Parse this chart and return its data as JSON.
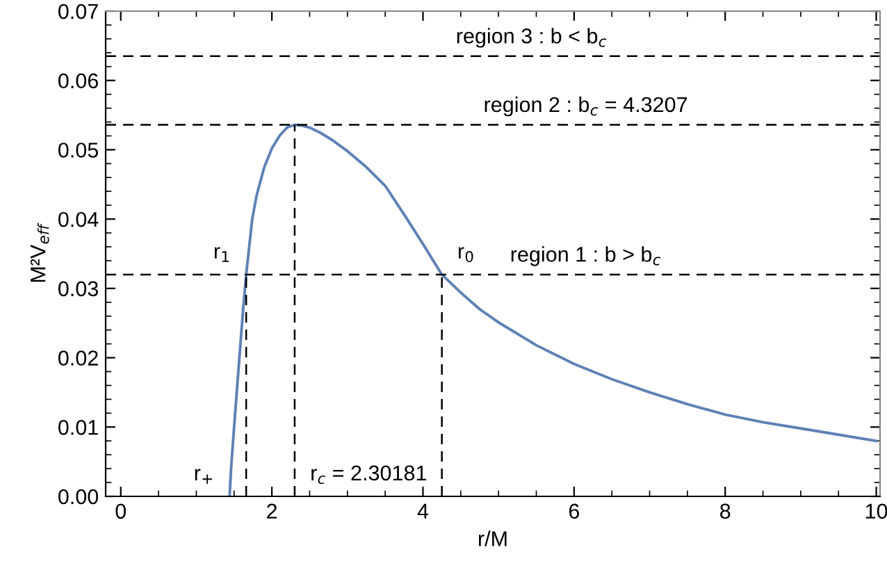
{
  "chart_data": {
    "type": "line",
    "xlabel": "r/M",
    "ylabel": "M²V$_{eff}$",
    "series": [
      {
        "color": "#5e81b5",
        "x": [
          1.44,
          1.46,
          1.5,
          1.57,
          1.62,
          1.66,
          1.74,
          1.8,
          1.9,
          2.0,
          2.1,
          2.2,
          2.30181,
          2.4,
          2.5,
          2.65,
          2.8,
          3.0,
          3.25,
          3.5,
          3.79,
          4.0,
          4.25,
          4.5,
          4.75,
          5,
          5.5,
          6,
          6.5,
          7,
          7.5,
          8,
          8.5,
          9,
          9.5,
          10
        ],
        "values": [
          0.0,
          0.004,
          0.01,
          0.02,
          0.027,
          0.032,
          0.04,
          0.0435,
          0.0475,
          0.0502,
          0.052,
          0.0532,
          0.0536,
          0.0535,
          0.0532,
          0.0524,
          0.0514,
          0.0498,
          0.0475,
          0.0448,
          0.04,
          0.0364,
          0.032,
          0.0294,
          0.027,
          0.0251,
          0.0218,
          0.0191,
          0.0169,
          0.015,
          0.0133,
          0.0118,
          0.0107,
          0.0098,
          0.0089,
          0.008
        ]
      }
    ],
    "xlim": [
      -0.2,
      10.05
    ],
    "ylim": [
      0,
      0.07
    ],
    "xticks": [
      0,
      2,
      4,
      6,
      8,
      10
    ],
    "yticks": [
      {
        "value": 0,
        "label": "0.00"
      },
      {
        "value": 0.01,
        "label": "0.01"
      },
      {
        "value": 0.02,
        "label": "0.02"
      },
      {
        "value": 0.03,
        "label": "0.03"
      },
      {
        "value": 0.04,
        "label": "0.04"
      },
      {
        "value": 0.05,
        "label": "0.05"
      },
      {
        "value": 0.06,
        "label": "0.06"
      },
      {
        "value": 0.07,
        "label": "0.07"
      }
    ],
    "ref_lines": [
      {
        "axis": "y",
        "value": 0.0635,
        "line_style": "dashed",
        "color": "#000000"
      },
      {
        "axis": "y",
        "value": 0.0536,
        "line_style": "dashed",
        "color": "#000000"
      },
      {
        "axis": "y",
        "value": 0.032,
        "line_style": "dashed",
        "color": "#000000"
      },
      {
        "axis": "x",
        "value": 1.66,
        "line_style": "dashed",
        "color": "#000000"
      },
      {
        "axis": "x",
        "value": 2.30181,
        "line_style": "dashed",
        "color": "#000000"
      },
      {
        "axis": "x",
        "value": 4.25,
        "line_style": "dashed",
        "color": "#000000"
      }
    ],
    "annotations": [
      "region 3 : b < b$_{c}$",
      "region 2 : b$_{c}$ = 4.3207",
      "region 1 : b > b$_{c}$",
      {
        "text": "r$_{+}$",
        "x": 1.44,
        "y": 0.0
      },
      {
        "text": "r$_{1}$",
        "x": 1.66,
        "y": 0.032
      },
      {
        "text": "r$_{c}$ = 2.30181",
        "x": 2.30181,
        "y": 0.0
      },
      {
        "text": "r$_{0}$",
        "x": 4.25,
        "y": 0.032
      }
    ],
    "grid": false,
    "legend": false
  }
}
